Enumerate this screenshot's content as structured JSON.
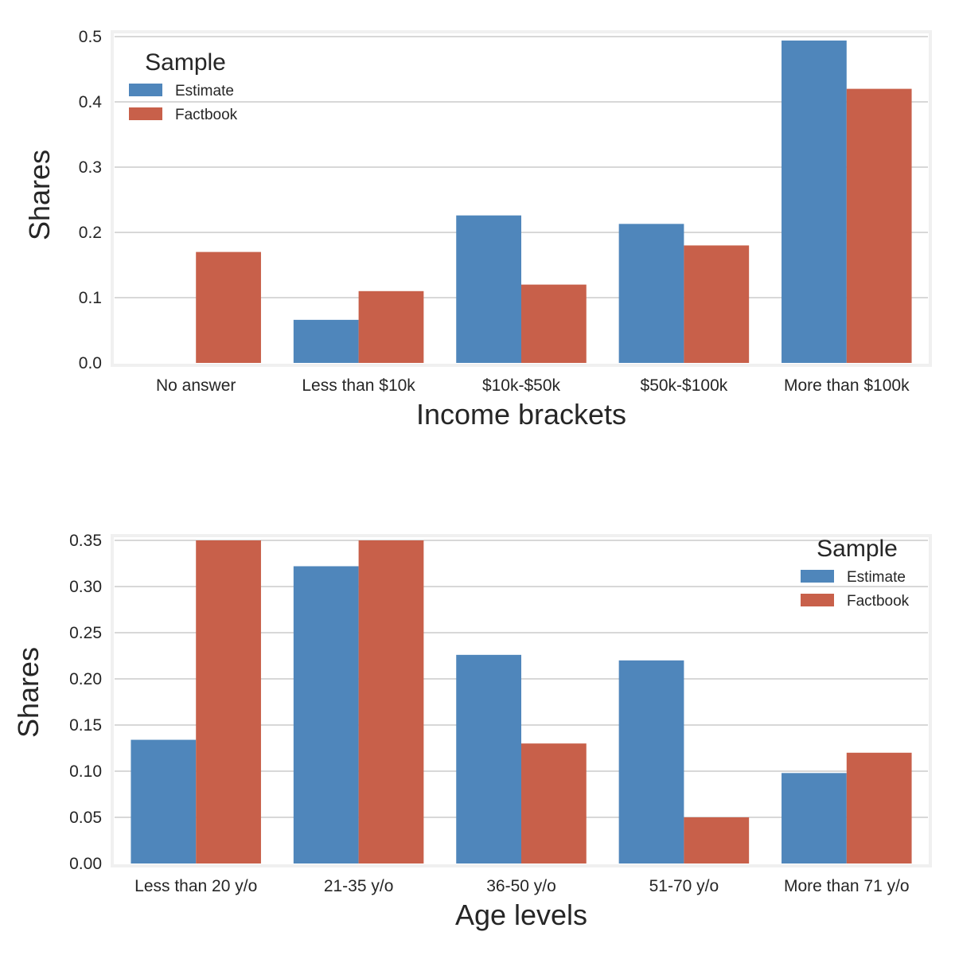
{
  "colors": {
    "estimate": "#4f86bb",
    "factbook": "#c8604a",
    "grid": "#cccccc",
    "frame": "#f0f0f0"
  },
  "chart_data": [
    {
      "type": "bar",
      "xlabel": "Income brackets",
      "ylabel": "Shares",
      "categories": [
        "No answer",
        "Less than $10k",
        "$10k-$50k",
        "$50k-$100k",
        "More than $100k"
      ],
      "series": [
        {
          "name": "Estimate",
          "values": [
            0.0,
            0.066,
            0.226,
            0.213,
            0.494
          ]
        },
        {
          "name": "Factbook",
          "values": [
            0.17,
            0.11,
            0.12,
            0.18,
            0.42
          ]
        }
      ],
      "ylim": [
        0,
        0.5
      ],
      "yticks": [
        "0.0",
        "0.1",
        "0.2",
        "0.3",
        "0.4",
        "0.5"
      ],
      "legend": {
        "title": "Sample",
        "placement": "top-left"
      },
      "grid": "y"
    },
    {
      "type": "bar",
      "xlabel": "Age levels",
      "ylabel": "Shares",
      "categories": [
        "Less than 20 y/o",
        "21-35 y/o",
        "36-50 y/o",
        "51-70 y/o",
        "More than 71 y/o"
      ],
      "series": [
        {
          "name": "Estimate",
          "values": [
            0.134,
            0.322,
            0.226,
            0.22,
            0.098
          ]
        },
        {
          "name": "Factbook",
          "values": [
            0.35,
            0.35,
            0.13,
            0.05,
            0.12
          ]
        }
      ],
      "ylim": [
        0,
        0.35
      ],
      "yticks": [
        "0.00",
        "0.05",
        "0.10",
        "0.15",
        "0.20",
        "0.25",
        "0.30",
        "0.35"
      ],
      "legend": {
        "title": "Sample",
        "placement": "top-right"
      },
      "grid": "y"
    }
  ]
}
